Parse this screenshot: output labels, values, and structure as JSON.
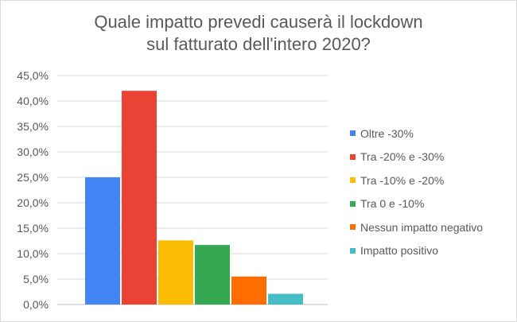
{
  "title": {
    "line1": "Quale impatto prevedi causerà il lockdown",
    "line2": "sul fatturato dell'intero 2020?"
  },
  "chart_data": {
    "type": "bar",
    "title": "Quale impatto prevedi causerà il lockdown sul fatturato dell'intero 2020?",
    "ylim": [
      0,
      45
    ],
    "yticks": [
      0,
      5,
      10,
      15,
      20,
      25,
      30,
      35,
      40,
      45
    ],
    "ytick_labels": [
      "0,0%",
      "5,0%",
      "10,0%",
      "15,0%",
      "20,0%",
      "25,0%",
      "30,0%",
      "35,0%",
      "40,0%",
      "45,0%"
    ],
    "grid": true,
    "legend_position": "right",
    "series": [
      {
        "name": "Oltre -30%",
        "value": 25.0,
        "color": "#4285f4"
      },
      {
        "name": "Tra -20% e -30%",
        "value": 42.0,
        "color": "#ea4335"
      },
      {
        "name": "Tra -10% e -20%",
        "value": 12.6,
        "color": "#fbbc04"
      },
      {
        "name": "Tra 0 e -10%",
        "value": 11.7,
        "color": "#34a853"
      },
      {
        "name": "Nessun impatto negativo",
        "value": 5.5,
        "color": "#ff6d01"
      },
      {
        "name": "Impatto positivo",
        "value": 2.1,
        "color": "#46bdc6"
      }
    ]
  }
}
